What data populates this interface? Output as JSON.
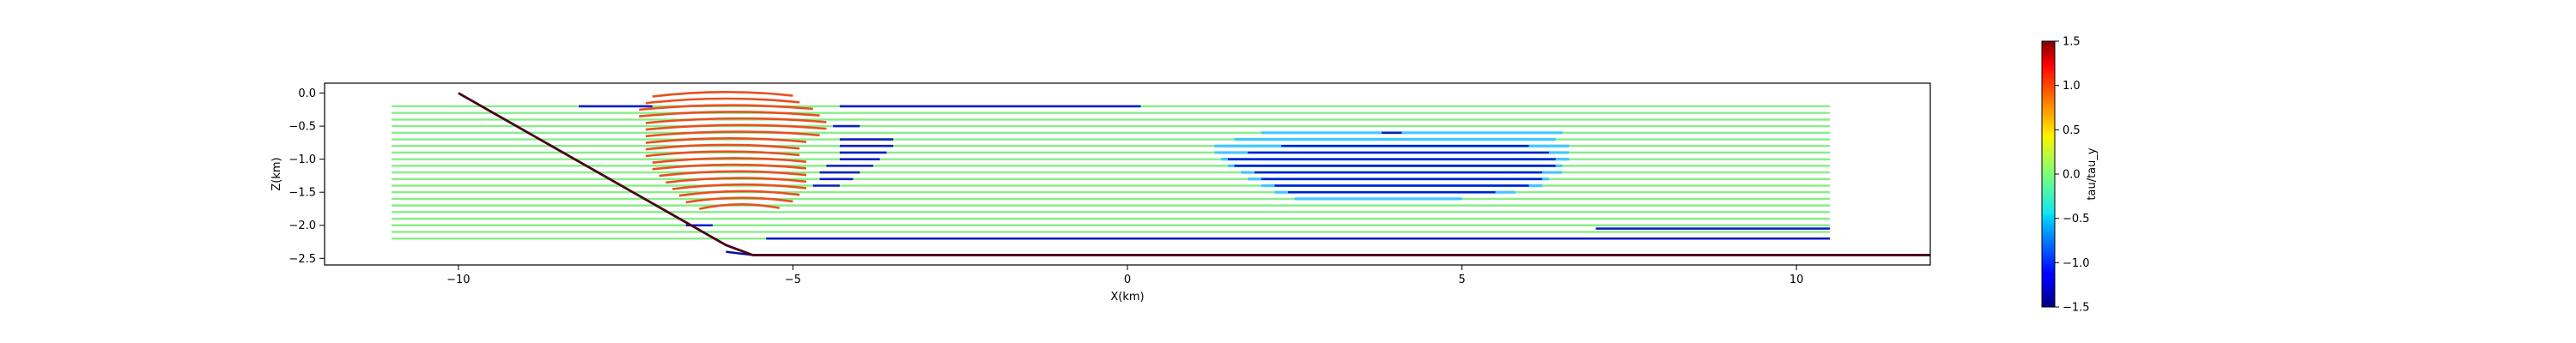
{
  "chart_data": {
    "type": "line",
    "xlabel": "X(km)",
    "ylabel": "Z(km)",
    "xlim": [
      -12.0,
      12.0
    ],
    "ylim": [
      -2.6,
      0.15
    ],
    "xticks": [
      -10,
      -5,
      0,
      5,
      10
    ],
    "yticks": [
      0.0,
      -0.5,
      -1.0,
      -1.5,
      -2.0,
      -2.5
    ],
    "xtick_labels": [
      "−10",
      "−5",
      "0",
      "5",
      "10"
    ],
    "ytick_labels": [
      "0.0",
      "−0.5",
      "−1.0",
      "−1.5",
      "−2.0",
      "−2.5"
    ],
    "grid": false,
    "colorbar": {
      "label": "tau/tau_y",
      "colormap": "jet",
      "range": [
        -1.5,
        1.5
      ],
      "ticks": [
        1.5,
        1.0,
        0.5,
        0.0,
        -0.5,
        -1.0,
        -1.5
      ],
      "tick_labels": [
        "1.5",
        "1.0",
        "0.5",
        "0.0",
        "−0.5",
        "−1.0",
        "−1.5"
      ]
    },
    "fault": {
      "color": "#4a0018",
      "points": [
        [
          -10.0,
          0.0
        ],
        [
          -6.0,
          -2.3
        ],
        [
          -5.6,
          -2.45
        ],
        [
          12.0,
          -2.45
        ]
      ]
    },
    "bottom_boundary": {
      "color": "#0010a0",
      "points": [
        [
          -6.0,
          -2.4
        ],
        [
          -5.6,
          -2.45
        ],
        [
          12.0,
          -2.45
        ]
      ]
    },
    "streamlines_background": {
      "color": "#88ee88",
      "x_start": -11.0,
      "x_end": 10.5,
      "z_start": -0.2,
      "z_end": -2.2,
      "count": 21
    },
    "orange_lines": {
      "color": "#e85020",
      "rows": [
        {
          "z": 0.0,
          "x": [
            -7.1,
            -5.0
          ]
        },
        {
          "z": -0.1,
          "x": [
            -7.2,
            -4.9
          ]
        },
        {
          "z": -0.2,
          "x": [
            -7.3,
            -4.7
          ]
        },
        {
          "z": -0.3,
          "x": [
            -7.3,
            -4.6
          ]
        },
        {
          "z": -0.4,
          "x": [
            -7.2,
            -4.5
          ]
        },
        {
          "z": -0.5,
          "x": [
            -7.2,
            -4.5
          ]
        },
        {
          "z": -0.6,
          "x": [
            -7.2,
            -4.6
          ]
        },
        {
          "z": -0.7,
          "x": [
            -7.2,
            -4.8
          ]
        },
        {
          "z": -0.8,
          "x": [
            -7.2,
            -4.9
          ]
        },
        {
          "z": -0.9,
          "x": [
            -7.2,
            -4.9
          ]
        },
        {
          "z": -1.0,
          "x": [
            -7.1,
            -4.8
          ]
        },
        {
          "z": -1.1,
          "x": [
            -7.1,
            -4.8
          ]
        },
        {
          "z": -1.2,
          "x": [
            -7.0,
            -4.8
          ]
        },
        {
          "z": -1.3,
          "x": [
            -6.9,
            -4.8
          ]
        },
        {
          "z": -1.4,
          "x": [
            -6.8,
            -4.8
          ]
        },
        {
          "z": -1.5,
          "x": [
            -6.7,
            -4.9
          ]
        },
        {
          "z": -1.6,
          "x": [
            -6.6,
            -5.0
          ]
        },
        {
          "z": -1.7,
          "x": [
            -6.4,
            -5.2
          ]
        }
      ]
    },
    "blue_lines": {
      "color": "#1020c0",
      "rows": [
        {
          "z": -0.2,
          "x": [
            -4.3,
            0.2
          ]
        },
        {
          "z": -0.2,
          "x": [
            -8.2,
            -7.1
          ]
        },
        {
          "z": -0.5,
          "x": [
            -4.4,
            -4.0
          ]
        },
        {
          "z": -0.7,
          "x": [
            -4.3,
            -3.5
          ]
        },
        {
          "z": -0.8,
          "x": [
            -4.3,
            -3.5
          ]
        },
        {
          "z": -0.9,
          "x": [
            -4.3,
            -3.6
          ]
        },
        {
          "z": -1.0,
          "x": [
            -4.3,
            -3.7
          ]
        },
        {
          "z": -1.1,
          "x": [
            -4.5,
            -3.8
          ]
        },
        {
          "z": -1.2,
          "x": [
            -4.6,
            -4.0
          ]
        },
        {
          "z": -1.3,
          "x": [
            -4.6,
            -4.1
          ]
        },
        {
          "z": -1.4,
          "x": [
            -4.7,
            -4.3
          ]
        },
        {
          "z": -2.0,
          "x": [
            -6.6,
            -6.2
          ]
        },
        {
          "z": -2.2,
          "x": [
            -5.4,
            10.5
          ]
        },
        {
          "z": -2.05,
          "x": [
            7.0,
            10.5
          ]
        }
      ]
    },
    "cyan_patch": {
      "color": "#40c8ff",
      "rows": [
        {
          "z": -0.6,
          "x": [
            2.0,
            6.5
          ]
        },
        {
          "z": -0.7,
          "x": [
            1.6,
            6.4
          ]
        },
        {
          "z": -0.8,
          "x": [
            1.3,
            6.6
          ]
        },
        {
          "z": -0.9,
          "x": [
            1.3,
            6.6
          ]
        },
        {
          "z": -1.0,
          "x": [
            1.4,
            6.6
          ]
        },
        {
          "z": -1.1,
          "x": [
            1.5,
            6.5
          ]
        },
        {
          "z": -1.2,
          "x": [
            1.7,
            6.5
          ]
        },
        {
          "z": -1.3,
          "x": [
            1.8,
            6.3
          ]
        },
        {
          "z": -1.4,
          "x": [
            2.0,
            6.2
          ]
        },
        {
          "z": -1.5,
          "x": [
            2.2,
            5.8
          ]
        },
        {
          "z": -1.6,
          "x": [
            2.5,
            5.0
          ]
        }
      ]
    },
    "blue_patch": {
      "color": "#0a1cc8",
      "rows": [
        {
          "z": -0.6,
          "x": [
            3.8,
            4.1
          ]
        },
        {
          "z": -0.8,
          "x": [
            2.3,
            6.0
          ]
        },
        {
          "z": -0.9,
          "x": [
            1.8,
            6.3
          ]
        },
        {
          "z": -1.0,
          "x": [
            1.5,
            6.4
          ]
        },
        {
          "z": -1.1,
          "x": [
            1.6,
            6.4
          ]
        },
        {
          "z": -1.2,
          "x": [
            1.9,
            6.2
          ]
        },
        {
          "z": -1.3,
          "x": [
            2.0,
            6.2
          ]
        },
        {
          "z": -1.4,
          "x": [
            2.2,
            6.0
          ]
        },
        {
          "z": -1.5,
          "x": [
            2.4,
            5.5
          ]
        }
      ]
    }
  }
}
